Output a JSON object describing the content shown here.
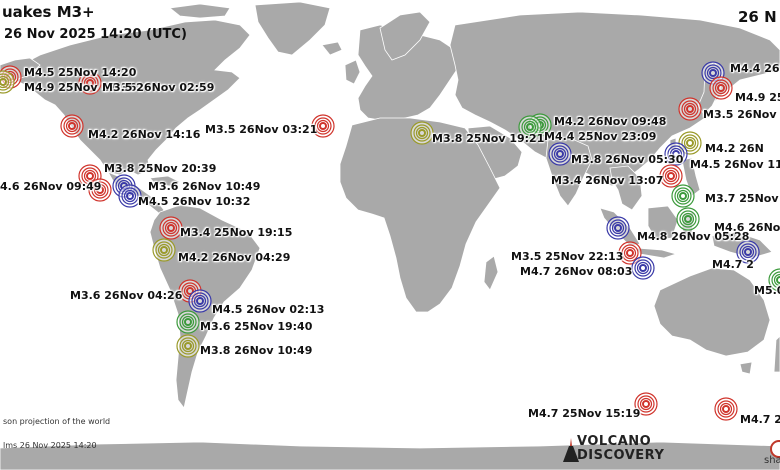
{
  "header": {
    "title": "uakes M3+",
    "subtitle": "26 Nov 2025 14:20 (UTC)",
    "right_title": "26 N"
  },
  "footer": {
    "projection_note": "son projection of the world",
    "timestamp_note": "lms 26 Nov 2025 14:20"
  },
  "logo": {
    "line1": "VOLCANO",
    "line2": "DISCOVERY"
  },
  "extra": {
    "share_text": "sha"
  },
  "colors": {
    "ocean": "#ffffff",
    "land": "#a9a9a9",
    "border": "#ffffff",
    "red": "#d0342c",
    "green": "#3c9a3c",
    "blue": "#3a3aa8",
    "olive": "#9a9a2a"
  },
  "quakes": [
    {
      "label": "M4.5 25Nov 14:20",
      "color": "red"
    },
    {
      "label": "M4.9 25Nov 17:36",
      "color": "olive"
    },
    {
      "label": "M3.5 26Nov 02:59",
      "color": "red"
    },
    {
      "label": "M4.2 26Nov 14:16",
      "color": "red"
    },
    {
      "label": "M3.5 26Nov 03:21",
      "color": "red"
    },
    {
      "label": "M3.8 25Nov 19:21",
      "color": "olive"
    },
    {
      "label": "M4.2 26Nov 09:48",
      "color": "green"
    },
    {
      "label": "M4.4 25Nov 23:09",
      "color": "green"
    },
    {
      "label": "M3.8 26Nov 05:30",
      "color": "blue"
    },
    {
      "label": "M3.8 25Nov 20:39",
      "color": "red"
    },
    {
      "label": "4.6 26Nov 09:49",
      "color": "red"
    },
    {
      "label": "M3.6 26Nov 10:49",
      "color": "blue"
    },
    {
      "label": "M4.5 26Nov 10:32",
      "color": "blue"
    },
    {
      "label": "M3.4 25Nov 19:15",
      "color": "red"
    },
    {
      "label": "M4.2 26Nov 04:29",
      "color": "olive"
    },
    {
      "label": "M3.6 26Nov 04:26",
      "color": "red"
    },
    {
      "label": "M4.5 26Nov 02:13",
      "color": "blue"
    },
    {
      "label": "M3.6 25Nov 19:40",
      "color": "green"
    },
    {
      "label": "M3.8 26Nov 10:49",
      "color": "olive"
    },
    {
      "label": "M4.4 26N",
      "color": "blue"
    },
    {
      "label": "M4.9 25",
      "color": "red"
    },
    {
      "label": "M3.5 26Nov 1",
      "color": "red"
    },
    {
      "label": "M4.2 26N",
      "color": "olive"
    },
    {
      "label": "M4.5 26Nov 11",
      "color": "blue"
    },
    {
      "label": "M3.4 26Nov 13:07",
      "color": "red"
    },
    {
      "label": "M3.7 25Nov 16",
      "color": "green"
    },
    {
      "label": "M4.6 26Nov",
      "color": "green"
    },
    {
      "label": "M4.8 26Nov 05:28",
      "color": "blue"
    },
    {
      "label": "M3.5 25Nov 22:13",
      "color": "red"
    },
    {
      "label": "M4.7 26Nov 08:03",
      "color": "blue"
    },
    {
      "label": "M4.7 2",
      "color": "blue"
    },
    {
      "label": "M5.0",
      "color": "green"
    },
    {
      "label": "M4.7 25Nov 15:19",
      "color": "red"
    },
    {
      "label": "M4.7 2",
      "color": "red"
    }
  ]
}
